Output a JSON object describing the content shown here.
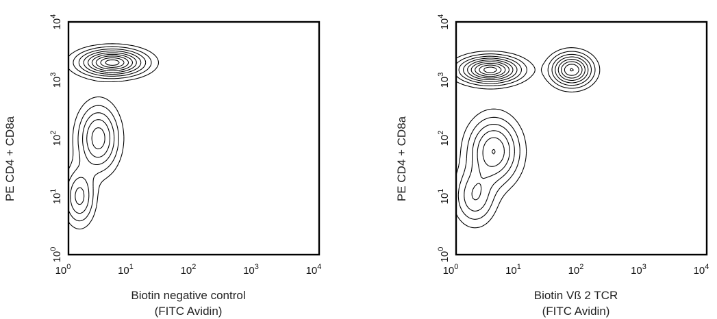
{
  "chart_data": [
    {
      "type": "contour",
      "xlabel": "Biotin negative control",
      "xlabel_sub": "(FITC Avidin)",
      "ylabel": "PE CD4 + CD8a",
      "scale": "log",
      "xlim": [
        1,
        10000
      ],
      "ylim": [
        1,
        10000
      ],
      "tick_base": "10",
      "tick_exponents": [
        "0",
        "1",
        "2",
        "3",
        "4"
      ],
      "populations": [
        {
          "x": 5,
          "y": 2000,
          "sx": 0.32,
          "sy": 0.14,
          "h": 1.0
        },
        {
          "x": 3,
          "y": 100,
          "sx": 0.2,
          "sy": 0.35,
          "h": 0.55
        },
        {
          "x": 1.5,
          "y": 10,
          "sx": 0.15,
          "sy": 0.3,
          "h": 0.4
        }
      ],
      "contour_levels": [
        0.07,
        0.15,
        0.25,
        0.36,
        0.48,
        0.6,
        0.72,
        0.84,
        0.94
      ]
    },
    {
      "type": "contour",
      "xlabel": "Biotin Vß 2 TCR",
      "xlabel_sub": "(FITC Avidin)",
      "ylabel": "PE CD4 + CD8a",
      "scale": "log",
      "xlim": [
        1,
        10000
      ],
      "ylim": [
        1,
        10000
      ],
      "tick_base": "10",
      "tick_exponents": [
        "0",
        "1",
        "2",
        "3",
        "4"
      ],
      "populations": [
        {
          "x": 3.5,
          "y": 1500,
          "sx": 0.3,
          "sy": 0.14,
          "h": 1.0
        },
        {
          "x": 70,
          "y": 1500,
          "sx": 0.2,
          "sy": 0.17,
          "h": 0.85
        },
        {
          "x": 4,
          "y": 60,
          "sx": 0.25,
          "sy": 0.35,
          "h": 0.6
        },
        {
          "x": 2,
          "y": 10,
          "sx": 0.2,
          "sy": 0.3,
          "h": 0.35
        }
      ],
      "contour_levels": [
        0.07,
        0.15,
        0.25,
        0.36,
        0.48,
        0.6,
        0.72,
        0.84,
        0.94
      ]
    }
  ]
}
